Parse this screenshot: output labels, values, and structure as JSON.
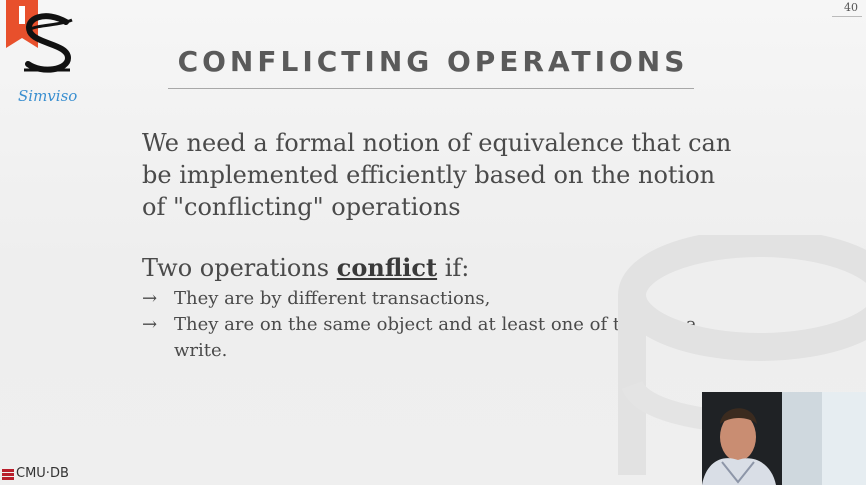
{
  "slide": {
    "number": "40",
    "title": "CONFLICTING OPERATIONS",
    "intro": "We need a formal notion of equivalence that can be implemented efficiently based on the notion of \"conflicting\" operations",
    "subhead_prefix": "Two operations ",
    "subhead_keyword": "conflict",
    "subhead_suffix": " if:",
    "bullet_glyph": "→",
    "bullets": [
      "They are by different transactions,",
      "They are on the same object and at least one of them is a write."
    ]
  },
  "branding": {
    "logo_text": "Simviso",
    "footer_logo_text": "CMU·DB",
    "accent_color": "#e8502c",
    "logo_blue": "#3a8fd0"
  }
}
